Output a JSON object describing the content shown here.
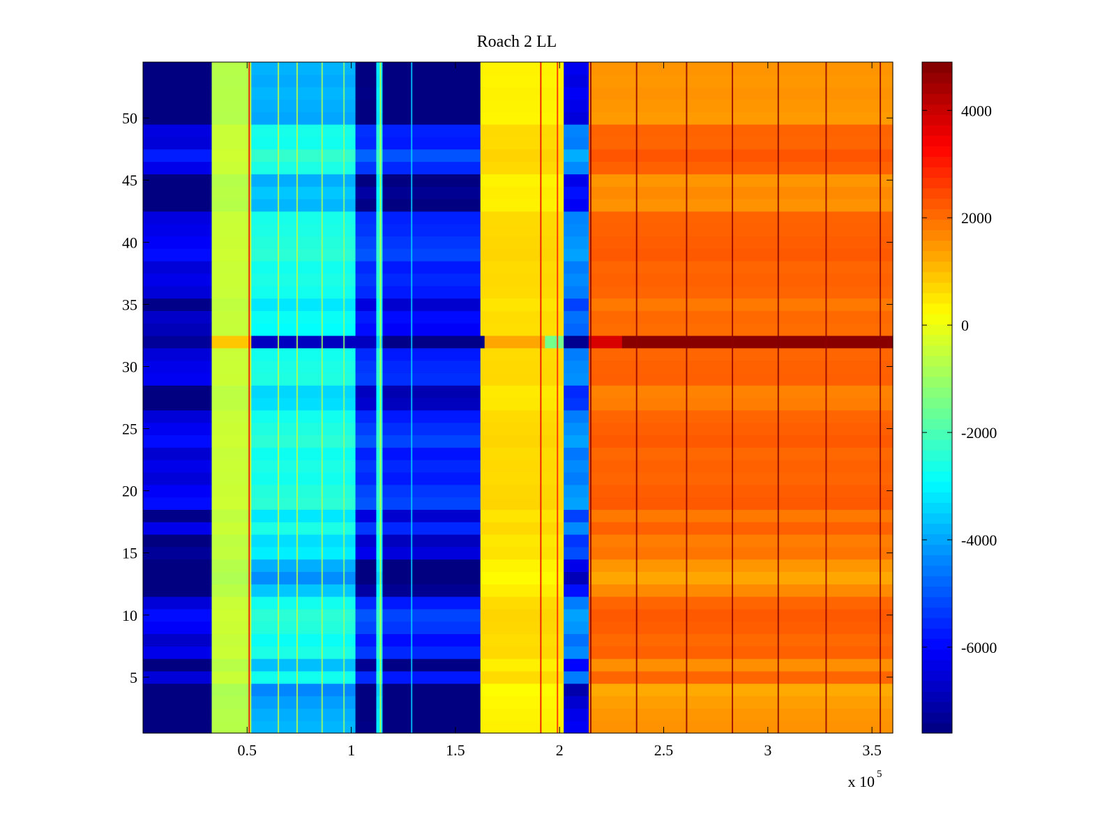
{
  "chart_data": {
    "type": "heatmap",
    "title": "Roach 2 LL",
    "xlabel": "",
    "ylabel": "",
    "x_multiplier_label": {
      "base": "x 10",
      "exponent": "5"
    },
    "xlim": [
      0,
      3.6
    ],
    "ylim": [
      0.5,
      54.5
    ],
    "x_ticks": [
      0.5,
      1,
      1.5,
      2,
      2.5,
      3,
      3.5
    ],
    "x_tick_labels": [
      "0.5",
      "1",
      "1.5",
      "2",
      "2.5",
      "3",
      "3.5"
    ],
    "y_ticks": [
      5,
      10,
      15,
      20,
      25,
      30,
      35,
      40,
      45,
      50
    ],
    "y_tick_labels": [
      "5",
      "10",
      "15",
      "20",
      "25",
      "30",
      "35",
      "40",
      "45",
      "50"
    ],
    "rows": 54,
    "colormap": "jet",
    "colorbar": {
      "clim": [
        -7600,
        4900
      ],
      "ticks": [
        -6000,
        -4000,
        -2000,
        0,
        2000,
        4000
      ],
      "tick_labels": [
        "-6000",
        "-4000",
        "-2000",
        "0",
        "2000",
        "4000"
      ],
      "location": "right"
    },
    "column_bands": [
      {
        "x_start": 0.0,
        "x_end": 0.33,
        "value": -6900,
        "sensitivity": 2.0
      },
      {
        "x_start": 0.33,
        "x_end": 0.52,
        "value": -500,
        "sensitivity": 0.2
      },
      {
        "x_start": 0.52,
        "x_end": 1.02,
        "value": -2900,
        "sensitivity": 1.0
      },
      {
        "x_start": 1.02,
        "x_end": 1.12,
        "value": -5900,
        "sensitivity": 1.8
      },
      {
        "x_start": 1.12,
        "x_end": 1.15,
        "value": -2600,
        "sensitivity": 0.6
      },
      {
        "x_start": 1.15,
        "x_end": 1.62,
        "value": -6100,
        "sensitivity": 1.8
      },
      {
        "x_start": 1.62,
        "x_end": 2.02,
        "value": 600,
        "sensitivity": 0.25
      },
      {
        "x_start": 2.02,
        "x_end": 2.14,
        "value": -4800,
        "sensitivity": 1.5
      },
      {
        "x_start": 2.14,
        "x_end": 3.6,
        "value": 2000,
        "sensitivity": 0.5
      }
    ],
    "row_offsets": [
      -900,
      -1000,
      -1200,
      -1500,
      200,
      -800,
      300,
      100,
      400,
      500,
      200,
      -700,
      -1400,
      -1000,
      -200,
      -400,
      300,
      -300,
      500,
      400,
      200,
      300,
      150,
      500,
      350,
      200,
      -400,
      -500,
      350,
      300,
      200,
      0,
      0,
      100,
      -300,
      200,
      300,
      200,
      500,
      400,
      300,
      250,
      -900,
      -700,
      -1000,
      300,
      600,
      200,
      250,
      -1100,
      -1000,
      -900,
      -1050,
      -950
    ],
    "special_row": {
      "y": 32,
      "cells": [
        {
          "x_start": 0.0,
          "x_end": 0.33,
          "value": -7300
        },
        {
          "x_start": 0.33,
          "x_end": 0.52,
          "value": 900
        },
        {
          "x_start": 0.52,
          "x_end": 1.12,
          "value": -6800
        },
        {
          "x_start": 1.12,
          "x_end": 1.15,
          "value": -3500
        },
        {
          "x_start": 1.15,
          "x_end": 1.64,
          "value": -7500
        },
        {
          "x_start": 1.64,
          "x_end": 1.93,
          "value": 1300
        },
        {
          "x_start": 1.93,
          "x_end": 2.02,
          "value": -1500
        },
        {
          "x_start": 2.02,
          "x_end": 2.14,
          "value": -7400
        },
        {
          "x_start": 2.14,
          "x_end": 2.3,
          "value": 3800
        },
        {
          "x_start": 2.3,
          "x_end": 3.6,
          "value": 4800
        }
      ]
    },
    "vertical_lines": [
      {
        "x": 0.51,
        "value": 3500
      },
      {
        "x": 0.65,
        "value": -600
      },
      {
        "x": 0.74,
        "value": -600
      },
      {
        "x": 0.86,
        "value": -900
      },
      {
        "x": 0.965,
        "value": -1200
      },
      {
        "x": 1.14,
        "value": -500
      },
      {
        "x": 1.29,
        "value": -3500
      },
      {
        "x": 1.91,
        "value": 3600
      },
      {
        "x": 1.99,
        "value": 3000
      },
      {
        "x": 2.15,
        "value": 4800
      },
      {
        "x": 2.37,
        "value": 4700
      },
      {
        "x": 2.61,
        "value": 4800
      },
      {
        "x": 2.83,
        "value": 4700
      },
      {
        "x": 3.05,
        "value": 4900
      },
      {
        "x": 3.28,
        "value": 4700
      },
      {
        "x": 3.54,
        "value": 4800
      }
    ]
  }
}
